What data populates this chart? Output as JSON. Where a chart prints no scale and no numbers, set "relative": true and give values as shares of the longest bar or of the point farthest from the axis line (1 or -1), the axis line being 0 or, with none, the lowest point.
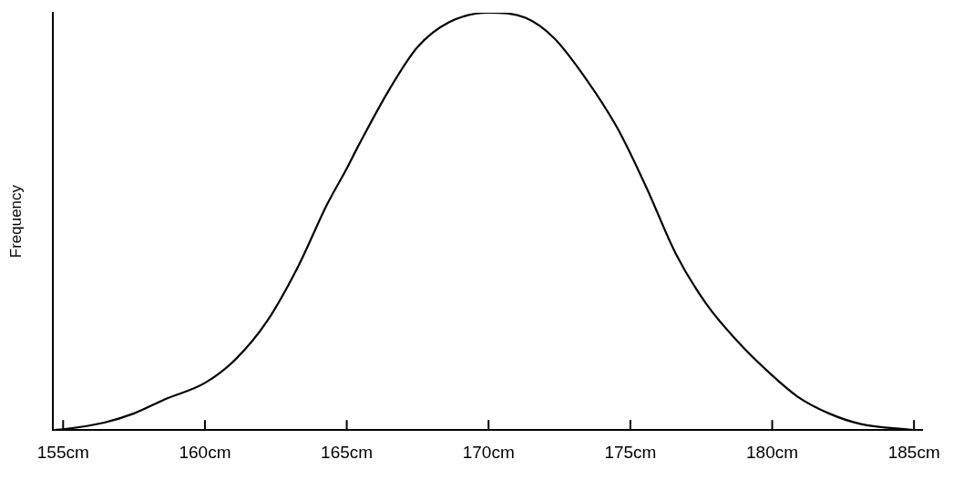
{
  "chart_data": {
    "type": "line",
    "relative": true,
    "ylabel": "Frequency",
    "color": "#000000",
    "grid": false,
    "legend": false,
    "marker": "none",
    "line_style": "solid",
    "x": [
      154.65,
      155,
      156.45,
      157.5,
      158.6,
      160,
      161.1,
      162.2,
      163.3,
      164.3,
      165,
      165.4,
      166.5,
      167.5,
      168.6,
      170,
      171.3,
      172.3,
      173.4,
      174.5,
      175,
      175.6,
      176.6,
      177.7,
      178.8,
      180,
      180.9,
      182,
      183.1,
      185
    ],
    "values": [
      0,
      0.002,
      0.018,
      0.04,
      0.074,
      0.113,
      0.171,
      0.262,
      0.394,
      0.54,
      0.627,
      0.68,
      0.816,
      0.918,
      0.977,
      1,
      0.988,
      0.94,
      0.845,
      0.729,
      0.663,
      0.576,
      0.423,
      0.3,
      0.211,
      0.131,
      0.08,
      0.04,
      0.015,
      0
    ],
    "xlim": [
      154.65,
      185.3
    ],
    "xticks": [
      {
        "value": 155,
        "label": "155cm"
      },
      {
        "value": 160,
        "label": "160cm"
      },
      {
        "value": 165,
        "label": "165cm"
      },
      {
        "value": 170,
        "label": "170cm"
      },
      {
        "value": 175,
        "label": "175cm"
      },
      {
        "value": 180,
        "label": "180cm"
      },
      {
        "value": 185,
        "label": "185cm"
      }
    ]
  }
}
